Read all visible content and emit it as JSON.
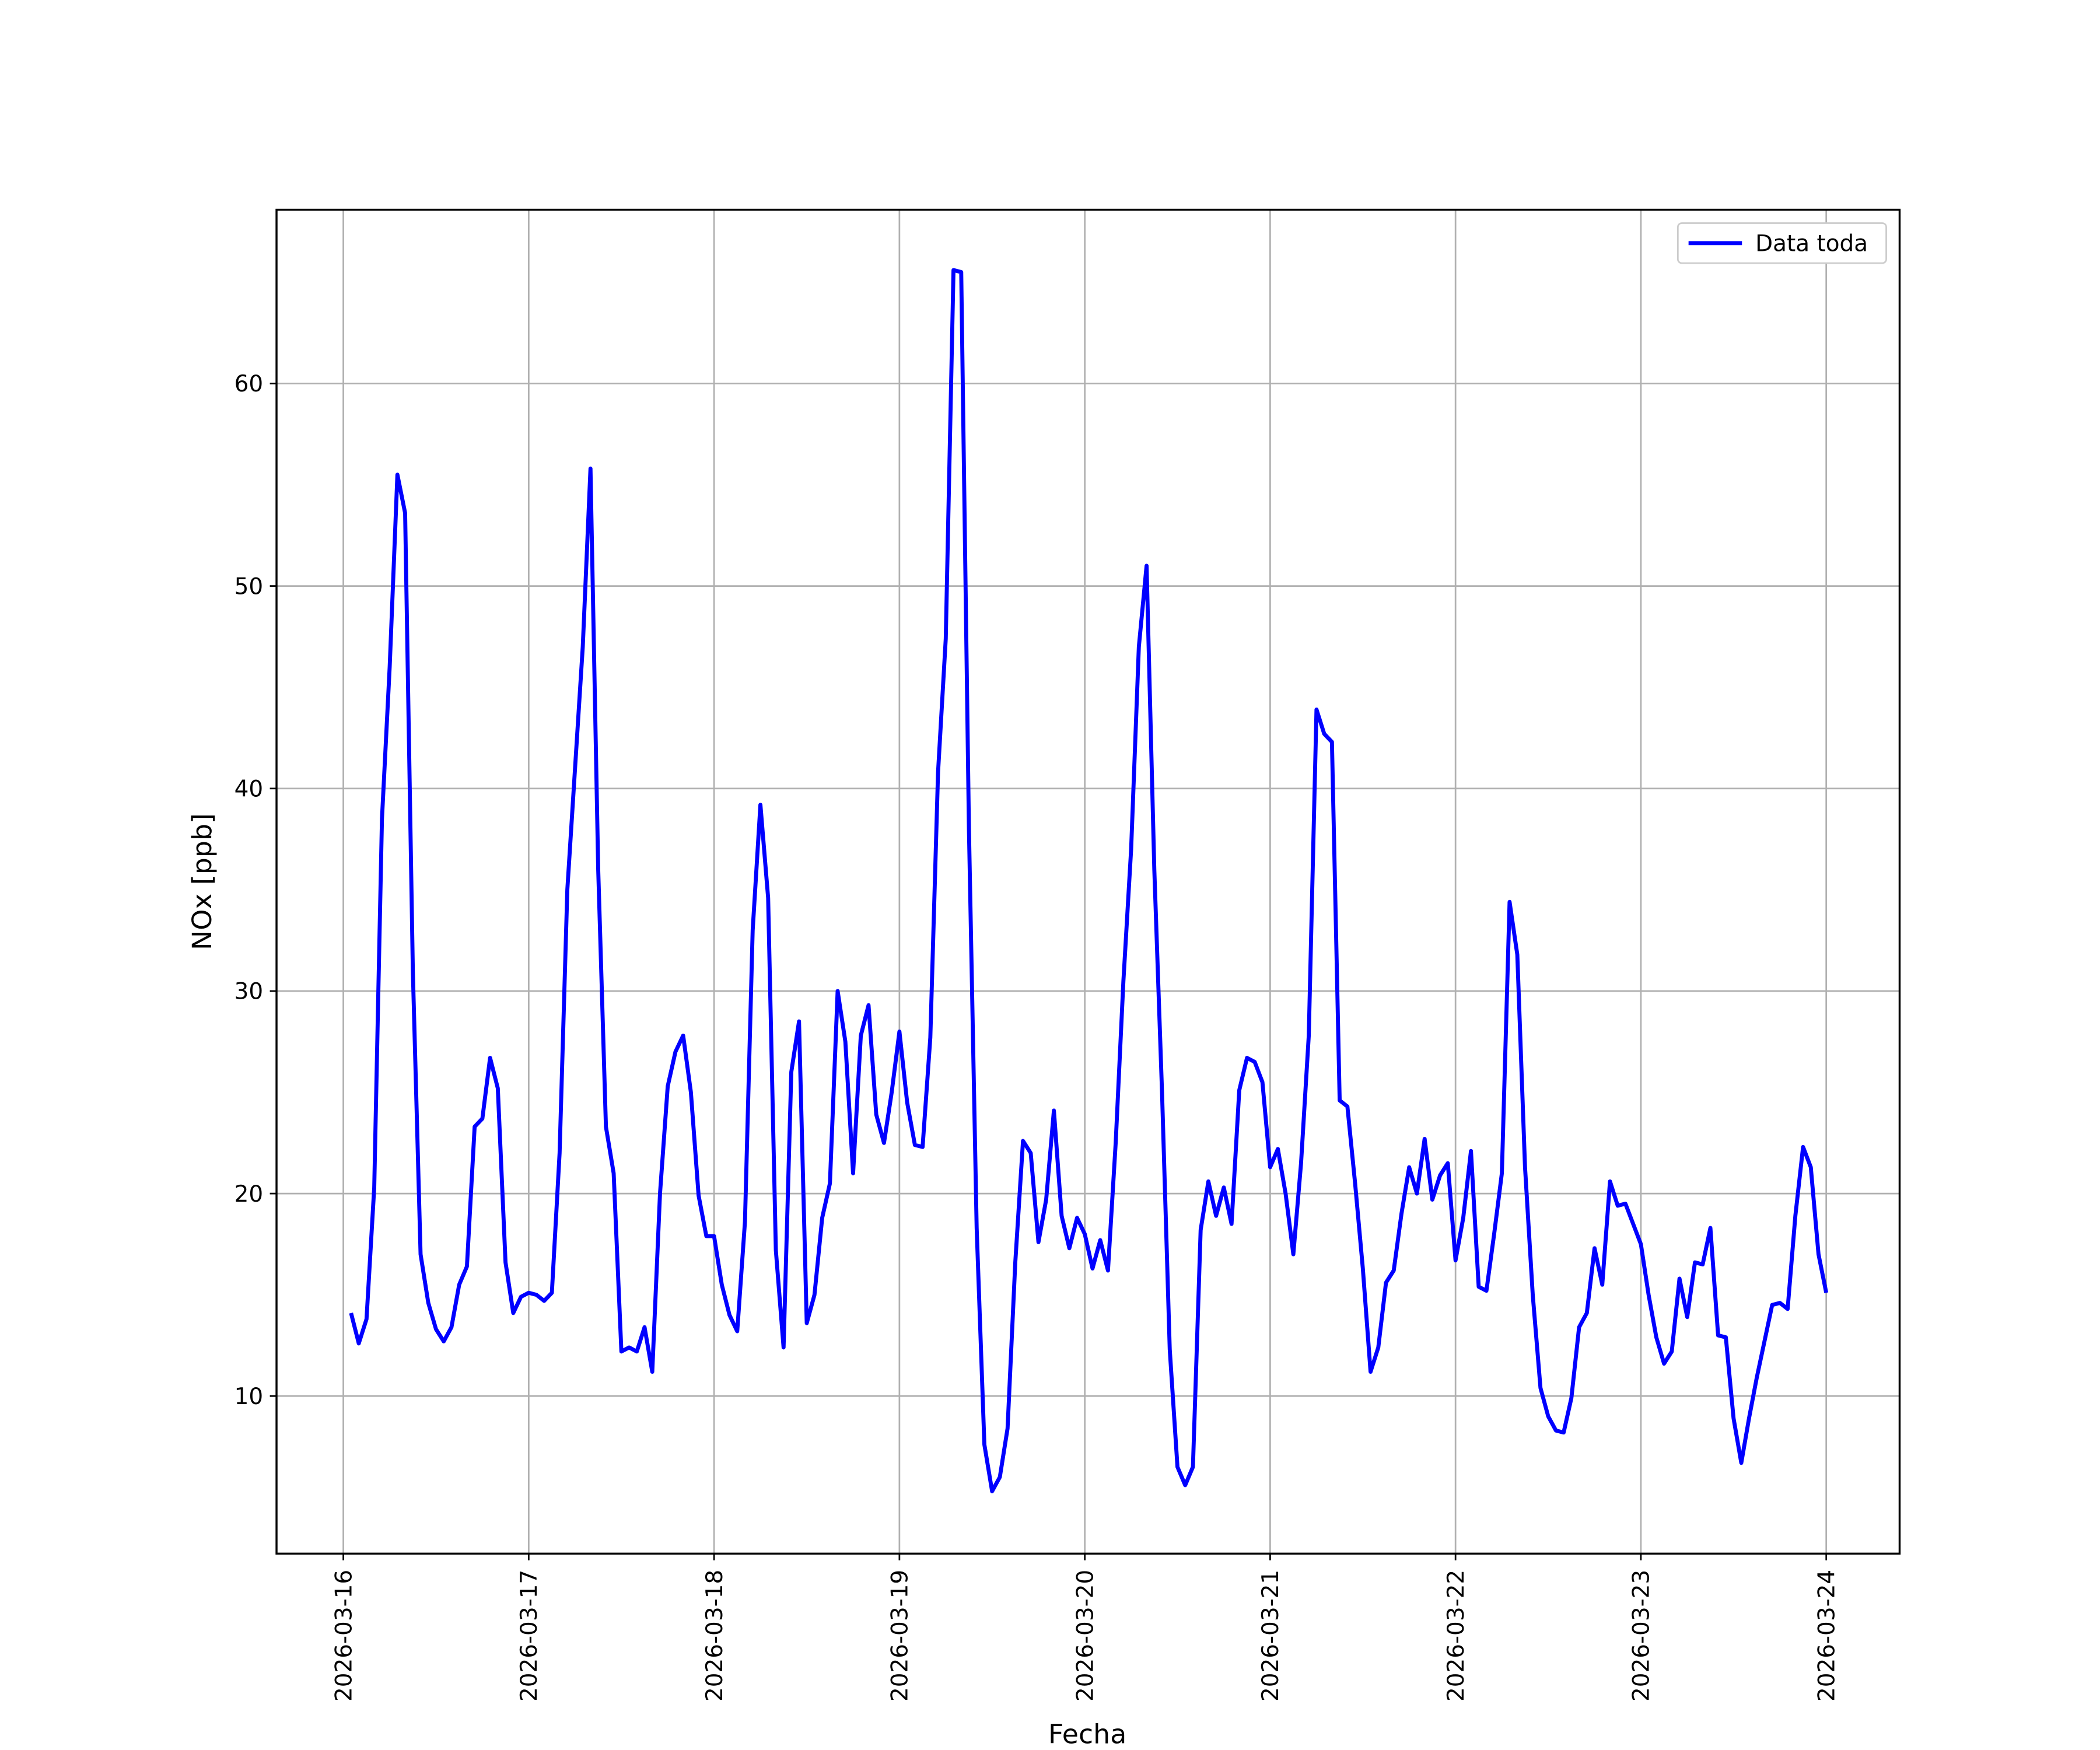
{
  "chart_data": {
    "type": "line",
    "xlabel": "Fecha",
    "ylabel": "NOx [ppb]",
    "grid": true,
    "legend": "upper right",
    "xlim": [
      "2026-03-15 15:21",
      "2026-03-24 09:30"
    ],
    "xticks": [
      "2026-03-16",
      "2026-03-17",
      "2026-03-18",
      "2026-03-19",
      "2026-03-20",
      "2026-03-21",
      "2026-03-22",
      "2026-03-23",
      "2026-03-24"
    ],
    "ylim": [
      2.22,
      68.58
    ],
    "yticks": [
      10,
      20,
      30,
      40,
      50,
      60
    ],
    "x": [
      "2026-03-16 01:00",
      "2026-03-16 02:00",
      "2026-03-16 03:00",
      "2026-03-16 04:00",
      "2026-03-16 05:00",
      "2026-03-16 06:00",
      "2026-03-16 07:00",
      "2026-03-16 08:00",
      "2026-03-16 09:00",
      "2026-03-16 10:00",
      "2026-03-16 11:00",
      "2026-03-16 12:00",
      "2026-03-16 13:00",
      "2026-03-16 14:00",
      "2026-03-16 15:00",
      "2026-03-16 16:00",
      "2026-03-16 17:00",
      "2026-03-16 18:00",
      "2026-03-16 19:00",
      "2026-03-16 20:00",
      "2026-03-16 21:00",
      "2026-03-16 22:00",
      "2026-03-16 23:00",
      "2026-03-17 00:00",
      "2026-03-17 01:00",
      "2026-03-17 02:00",
      "2026-03-17 03:00",
      "2026-03-17 04:00",
      "2026-03-17 05:00",
      "2026-03-17 06:00",
      "2026-03-17 07:00",
      "2026-03-17 08:00",
      "2026-03-17 09:00",
      "2026-03-17 10:00",
      "2026-03-17 11:00",
      "2026-03-17 12:00",
      "2026-03-17 13:00",
      "2026-03-17 14:00",
      "2026-03-17 15:00",
      "2026-03-17 16:00",
      "2026-03-17 17:00",
      "2026-03-17 18:00",
      "2026-03-17 19:00",
      "2026-03-17 20:00",
      "2026-03-17 21:00",
      "2026-03-17 22:00",
      "2026-03-17 23:00",
      "2026-03-18 00:00",
      "2026-03-18 01:00",
      "2026-03-18 02:00",
      "2026-03-18 03:00",
      "2026-03-18 04:00",
      "2026-03-18 05:00",
      "2026-03-18 06:00",
      "2026-03-18 07:00",
      "2026-03-18 08:00",
      "2026-03-18 09:00",
      "2026-03-18 10:00",
      "2026-03-18 11:00",
      "2026-03-18 12:00",
      "2026-03-18 13:00",
      "2026-03-18 14:00",
      "2026-03-18 15:00",
      "2026-03-18 16:00",
      "2026-03-18 17:00",
      "2026-03-18 18:00",
      "2026-03-18 19:00",
      "2026-03-18 20:00",
      "2026-03-18 21:00",
      "2026-03-18 22:00",
      "2026-03-18 23:00",
      "2026-03-19 00:00",
      "2026-03-19 01:00",
      "2026-03-19 02:00",
      "2026-03-19 03:00",
      "2026-03-19 04:00",
      "2026-03-19 05:00",
      "2026-03-19 06:00",
      "2026-03-19 07:00",
      "2026-03-19 08:00",
      "2026-03-19 09:00",
      "2026-03-19 10:00",
      "2026-03-19 11:00",
      "2026-03-19 12:00",
      "2026-03-19 13:00",
      "2026-03-19 14:00",
      "2026-03-19 15:00",
      "2026-03-19 16:00",
      "2026-03-19 17:00",
      "2026-03-19 18:00",
      "2026-03-19 19:00",
      "2026-03-19 20:00",
      "2026-03-19 21:00",
      "2026-03-19 22:00",
      "2026-03-19 23:00",
      "2026-03-20 00:00",
      "2026-03-20 01:00",
      "2026-03-20 02:00",
      "2026-03-20 03:00",
      "2026-03-20 04:00",
      "2026-03-20 05:00",
      "2026-03-20 06:00",
      "2026-03-20 07:00",
      "2026-03-20 08:00",
      "2026-03-20 09:00",
      "2026-03-20 10:00",
      "2026-03-20 11:00",
      "2026-03-20 12:00",
      "2026-03-20 13:00",
      "2026-03-20 14:00",
      "2026-03-20 15:00",
      "2026-03-20 16:00",
      "2026-03-20 17:00",
      "2026-03-20 18:00",
      "2026-03-20 19:00",
      "2026-03-20 20:00",
      "2026-03-20 21:00",
      "2026-03-20 22:00",
      "2026-03-20 23:00",
      "2026-03-21 00:00",
      "2026-03-21 01:00",
      "2026-03-21 02:00",
      "2026-03-21 03:00",
      "2026-03-21 04:00",
      "2026-03-21 05:00",
      "2026-03-21 06:00",
      "2026-03-21 07:00",
      "2026-03-21 08:00",
      "2026-03-21 09:00",
      "2026-03-21 10:00",
      "2026-03-21 11:00",
      "2026-03-21 12:00",
      "2026-03-21 13:00",
      "2026-03-21 14:00",
      "2026-03-21 15:00",
      "2026-03-21 16:00",
      "2026-03-21 17:00",
      "2026-03-21 18:00",
      "2026-03-21 19:00",
      "2026-03-21 20:00",
      "2026-03-21 21:00",
      "2026-03-21 22:00",
      "2026-03-21 23:00",
      "2026-03-22 00:00",
      "2026-03-22 01:00",
      "2026-03-22 02:00",
      "2026-03-22 03:00",
      "2026-03-22 04:00",
      "2026-03-22 05:00",
      "2026-03-22 06:00",
      "2026-03-22 07:00",
      "2026-03-22 08:00",
      "2026-03-22 09:00",
      "2026-03-22 10:00",
      "2026-03-22 11:00",
      "2026-03-22 12:00",
      "2026-03-22 13:00",
      "2026-03-22 14:00",
      "2026-03-22 15:00",
      "2026-03-22 16:00",
      "2026-03-22 17:00",
      "2026-03-22 18:00",
      "2026-03-22 19:00",
      "2026-03-22 20:00",
      "2026-03-22 21:00",
      "2026-03-22 22:00",
      "2026-03-22 23:00",
      "2026-03-23 00:00",
      "2026-03-23 01:00",
      "2026-03-23 02:00",
      "2026-03-23 03:00",
      "2026-03-23 04:00",
      "2026-03-23 05:00",
      "2026-03-23 06:00",
      "2026-03-23 07:00",
      "2026-03-23 08:00",
      "2026-03-23 09:00",
      "2026-03-23 10:00",
      "2026-03-23 11:00",
      "2026-03-23 12:00",
      "2026-03-23 13:00",
      "2026-03-23 14:00",
      "2026-03-23 15:00",
      "2026-03-23 16:00",
      "2026-03-23 17:00",
      "2026-03-23 18:00",
      "2026-03-23 19:00",
      "2026-03-23 20:00",
      "2026-03-23 21:00",
      "2026-03-23 22:00",
      "2026-03-23 23:00",
      "2026-03-24 00:00"
    ],
    "series": [
      {
        "name": "Data toda",
        "color": "#0000ff",
        "values": [
          14.1,
          12.6,
          13.8,
          20.3,
          38.5,
          46,
          55.5,
          53.6,
          31,
          17,
          14.6,
          13.3,
          12.7,
          13.4,
          15.5,
          16.4,
          23.3,
          23.7,
          26.7,
          25.2,
          16.6,
          14.1,
          14.9,
          15.1,
          15.0,
          14.7,
          15.1,
          22,
          35,
          41,
          47,
          55.8,
          36,
          23.3,
          21,
          12.2,
          12.4,
          12.2,
          13.4,
          11.2,
          20,
          25.3,
          27,
          27.8,
          25,
          19.9,
          17.9,
          17.9,
          15.5,
          14,
          13.2,
          18.6,
          33,
          39.2,
          34.6,
          17.2,
          12.4,
          26,
          28.5,
          13.6,
          15,
          18.8,
          20.5,
          30,
          27.5,
          21,
          27.8,
          29.3,
          23.9,
          22.5,
          25,
          28,
          24.5,
          22.4,
          22.3,
          27.7,
          40.8,
          47.4,
          65.6,
          65.5,
          38,
          18.3,
          7.6,
          5.3,
          6,
          8.4,
          16.6,
          22.6,
          22,
          17.6,
          19.7,
          24.1,
          18.9,
          17.3,
          18.8,
          18,
          16.3,
          17.7,
          16.2,
          22.5,
          30.5,
          37,
          47,
          51,
          36,
          25,
          12.3,
          6.5,
          5.6,
          6.5,
          18.2,
          20.6,
          18.9,
          20.3,
          18.5,
          25.1,
          26.7,
          26.5,
          25.5,
          21.3,
          22.2,
          20,
          17,
          21.5,
          27.8,
          43.9,
          42.7,
          42.3,
          24.6,
          24.3,
          20.5,
          16.3,
          11.2,
          12.4,
          15.6,
          16.2,
          19,
          21.3,
          20,
          22.7,
          19.7,
          20.9,
          21.5,
          16.7,
          18.8,
          22.1,
          15.4,
          15.2,
          18,
          21,
          34.4,
          31.8,
          21.3,
          15,
          10.4,
          9,
          8.3,
          8.2,
          9.9,
          13.4,
          14.1,
          17.3,
          15.5,
          20.6,
          19.4,
          19.5,
          18.5,
          17.5,
          15,
          12.9,
          11.6,
          12.2,
          15.8,
          13.9,
          16.6,
          16.5,
          18.3,
          13,
          12.9,
          8.9,
          6.7,
          8.9,
          10.9,
          12.7,
          14.5,
          14.6,
          14.3,
          18.9,
          22.3,
          21.3,
          17,
          15.1
        ]
      }
    ]
  }
}
